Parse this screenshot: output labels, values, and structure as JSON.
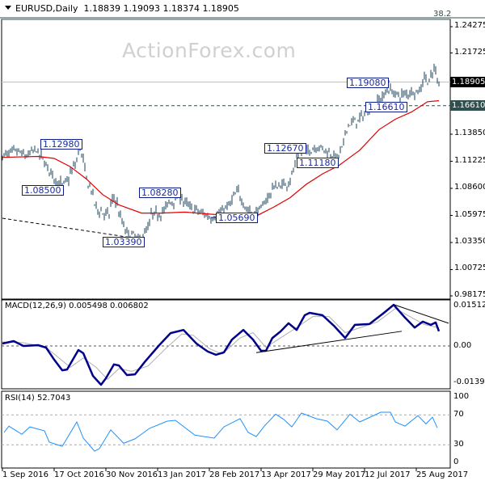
{
  "header": {
    "symbol": "EURUSD,Daily",
    "ohlc": "1.18839 1.19093 1.18374 1.18905"
  },
  "watermark": "ActionForex.com",
  "fib_label": "38.2",
  "colors": {
    "bars": "#17425a",
    "ma": "#e00000",
    "macd": "#00008b",
    "signal": "#b0b0b0",
    "rsi": "#1e90ff",
    "current_tag": "#000000",
    "level_tag": "#2f4f4f",
    "annotation": "#0a1a8a"
  },
  "chart_data": [
    {
      "type": "ohlc-bar",
      "title": "EURUSD,Daily",
      "y_ticks": [
        "1.24275",
        "1.21725",
        "1.18905",
        "1.16610",
        "1.13850",
        "1.11225",
        "1.08600",
        "1.05975",
        "1.03350",
        "1.00725",
        "0.98175"
      ],
      "ylim": [
        0.98175,
        1.24275
      ],
      "x_ticks": [
        {
          "date": "2016-09-01",
          "label": "1 Sep 2016"
        },
        {
          "date": "2016-10-17",
          "label": "17 Oct 2016"
        },
        {
          "date": "2016-11-30",
          "label": "30 Nov 2016"
        },
        {
          "date": "2017-01-13",
          "label": "13 Jan 2017"
        },
        {
          "date": "2017-02-28",
          "label": "28 Feb 2017"
        },
        {
          "date": "2017-04-13",
          "label": "13 Apr 2017"
        },
        {
          "date": "2017-05-29",
          "label": "29 May 2017"
        },
        {
          "date": "2017-07-12",
          "label": "12 Jul 2017"
        },
        {
          "date": "2017-08-25",
          "label": "25 Aug 2017"
        }
      ],
      "last_bar": {
        "open": 1.18839,
        "high": 1.19093,
        "low": 1.18374,
        "close": 1.18905
      },
      "current_price": "1.18905",
      "horizontal_level": "1.16610",
      "close_path": [
        [
          "2016-09-01",
          1.117
        ],
        [
          "2016-09-13",
          1.122
        ],
        [
          "2016-09-23",
          1.117
        ],
        [
          "2016-09-30",
          1.124
        ],
        [
          "2016-10-07",
          1.113
        ],
        [
          "2016-10-14",
          1.1
        ],
        [
          "2016-10-23",
          1.087
        ],
        [
          "2016-10-31",
          1.1
        ],
        [
          "2016-11-08",
          1.125
        ],
        [
          "2016-11-11",
          1.105
        ],
        [
          "2016-11-18",
          1.08
        ],
        [
          "2016-11-23",
          1.065
        ],
        [
          "2016-12-02",
          1.06
        ],
        [
          "2016-12-07",
          1.077
        ],
        [
          "2016-12-12",
          1.062
        ],
        [
          "2016-12-16",
          1.045
        ],
        [
          "2016-12-23",
          1.04
        ],
        [
          "2016-12-29",
          1.036
        ],
        [
          "2017-01-03",
          1.042
        ],
        [
          "2017-01-09",
          1.06
        ],
        [
          "2017-01-17",
          1.062
        ],
        [
          "2017-01-24",
          1.072
        ],
        [
          "2017-02-02",
          1.078
        ],
        [
          "2017-02-10",
          1.068
        ],
        [
          "2017-02-21",
          1.062
        ],
        [
          "2017-03-01",
          1.058
        ],
        [
          "2017-03-07",
          1.06
        ],
        [
          "2017-03-17",
          1.07
        ],
        [
          "2017-03-25",
          1.085
        ],
        [
          "2017-03-31",
          1.066
        ],
        [
          "2017-04-07",
          1.062
        ],
        [
          "2017-04-14",
          1.067
        ],
        [
          "2017-04-24",
          1.087
        ],
        [
          "2017-05-05",
          1.09
        ],
        [
          "2017-05-09",
          1.095
        ],
        [
          "2017-05-15",
          1.12
        ],
        [
          "2017-05-23",
          1.122
        ],
        [
          "2017-06-02",
          1.127
        ],
        [
          "2017-06-12",
          1.12
        ],
        [
          "2017-06-19",
          1.115
        ],
        [
          "2017-06-23",
          1.128
        ],
        [
          "2017-06-28",
          1.148
        ],
        [
          "2017-07-07",
          1.152
        ],
        [
          "2017-07-18",
          1.165
        ],
        [
          "2017-07-25",
          1.172
        ],
        [
          "2017-08-02",
          1.182
        ],
        [
          "2017-08-11",
          1.175
        ],
        [
          "2017-08-22",
          1.18
        ],
        [
          "2017-08-29",
          1.18
        ],
        [
          "2017-09-01",
          1.195
        ],
        [
          "2017-09-06",
          1.19
        ],
        [
          "2017-09-11",
          1.203
        ],
        [
          "2017-09-14",
          1.189
        ]
      ],
      "moving_average": [
        [
          "2016-09-01",
          1.116
        ],
        [
          "2016-10-03",
          1.117
        ],
        [
          "2016-10-17",
          1.115
        ],
        [
          "2016-10-31",
          1.107
        ],
        [
          "2016-11-14",
          1.095
        ],
        [
          "2016-11-28",
          1.08
        ],
        [
          "2016-12-12",
          1.07
        ],
        [
          "2016-12-30",
          1.062
        ],
        [
          "2017-01-17",
          1.062
        ],
        [
          "2017-02-07",
          1.063
        ],
        [
          "2017-02-28",
          1.061
        ],
        [
          "2017-03-14",
          1.06
        ],
        [
          "2017-03-28",
          1.062
        ],
        [
          "2017-04-11",
          1.06
        ],
        [
          "2017-04-25",
          1.068
        ],
        [
          "2017-05-09",
          1.077
        ],
        [
          "2017-05-23",
          1.09
        ],
        [
          "2017-06-06",
          1.1
        ],
        [
          "2017-06-20",
          1.108
        ],
        [
          "2017-07-07",
          1.123
        ],
        [
          "2017-07-25",
          1.143
        ],
        [
          "2017-08-08",
          1.153
        ],
        [
          "2017-08-22",
          1.16
        ],
        [
          "2017-09-05",
          1.17
        ],
        [
          "2017-09-14",
          1.171
        ]
      ],
      "annotations": [
        {
          "label": "1.12980",
          "date": "2016-11-08",
          "price": 1.1298
        },
        {
          "label": "1.08500",
          "date": "2016-10-23",
          "price": 1.085
        },
        {
          "label": "1.03390",
          "date": "2016-12-29",
          "price": 1.0339
        },
        {
          "label": "1.08280",
          "date": "2017-02-02",
          "price": 1.0828
        },
        {
          "label": "1.05690",
          "date": "2017-03-01",
          "price": 1.0569
        },
        {
          "label": "1.12670",
          "date": "2017-05-23",
          "price": 1.1267
        },
        {
          "label": "1.11180",
          "date": "2017-06-19",
          "price": 1.1118
        },
        {
          "label": "1.16610",
          "date": "2017-08-11",
          "price": 1.1661
        },
        {
          "label": "1.19080",
          "date": "2017-08-02",
          "price": 1.1908
        }
      ],
      "trendline": [
        [
          "2016-09-01",
          1.057
        ],
        [
          "2016-12-29",
          1.037
        ]
      ]
    },
    {
      "type": "line",
      "title": "MACD(12,26,9) 0.005498 0.006802",
      "y_ticks": [
        "0.01512",
        "0.00",
        "-0.013938"
      ],
      "ylim": [
        -0.0155,
        0.017
      ],
      "series": [
        {
          "name": "MACD",
          "values": [
            [
              "2016-09-01",
              0.0009
            ],
            [
              "2016-09-12",
              0.0018
            ],
            [
              "2016-09-20",
              0.0
            ],
            [
              "2016-10-03",
              0.0003
            ],
            [
              "2016-10-08",
              -0.0006
            ],
            [
              "2016-10-15",
              -0.0051
            ],
            [
              "2016-10-24",
              -0.0091
            ],
            [
              "2016-10-27",
              -0.0088
            ],
            [
              "2016-11-07",
              -0.0015
            ],
            [
              "2016-11-10",
              -0.0027
            ],
            [
              "2016-11-18",
              -0.0112
            ],
            [
              "2016-11-25",
              -0.0145
            ],
            [
              "2016-11-30",
              -0.0121
            ],
            [
              "2016-12-07",
              -0.0069
            ],
            [
              "2016-12-12",
              -0.0073
            ],
            [
              "2016-12-19",
              -0.0109
            ],
            [
              "2016-12-25",
              -0.0106
            ],
            [
              "2017-01-03",
              -0.006
            ],
            [
              "2017-01-14",
              0.0003
            ],
            [
              "2017-01-25",
              0.0048
            ],
            [
              "2017-02-04",
              0.006
            ],
            [
              "2017-02-16",
              0.0009
            ],
            [
              "2017-02-25",
              -0.0021
            ],
            [
              "2017-03-04",
              -0.0033
            ],
            [
              "2017-03-11",
              -0.0024
            ],
            [
              "2017-03-19",
              0.0024
            ],
            [
              "2017-03-29",
              0.006
            ],
            [
              "2017-04-06",
              0.0024
            ],
            [
              "2017-04-13",
              -0.0018
            ],
            [
              "2017-04-18",
              -0.0018
            ],
            [
              "2017-04-24",
              0.003
            ],
            [
              "2017-04-29",
              0.0054
            ],
            [
              "2017-05-08",
              0.0085
            ],
            [
              "2017-05-14",
              0.006
            ],
            [
              "2017-05-20",
              0.0115
            ],
            [
              "2017-05-25",
              0.0124
            ],
            [
              "2017-06-06",
              0.0115
            ],
            [
              "2017-06-15",
              0.0076
            ],
            [
              "2017-06-25",
              0.003
            ],
            [
              "2017-07-04",
              0.0079
            ],
            [
              "2017-07-17",
              0.0082
            ],
            [
              "2017-07-28",
              0.0124
            ],
            [
              "2017-08-06",
              0.0154
            ],
            [
              "2017-08-16",
              0.0106
            ],
            [
              "2017-08-24",
              0.0069
            ],
            [
              "2017-08-31",
              0.0091
            ],
            [
              "2017-09-07",
              0.0079
            ],
            [
              "2017-09-12",
              0.0088
            ],
            [
              "2017-09-14",
              0.0055
            ]
          ]
        },
        {
          "name": "Signal",
          "values": [
            [
              "2016-09-01",
              0.0015
            ],
            [
              "2016-09-20",
              0.0012
            ],
            [
              "2016-10-08",
              -0.0005
            ],
            [
              "2016-10-20",
              -0.0045
            ],
            [
              "2016-10-30",
              -0.008
            ],
            [
              "2016-11-10",
              -0.0045
            ],
            [
              "2016-11-22",
              -0.008
            ],
            [
              "2016-12-01",
              -0.0125
            ],
            [
              "2016-12-12",
              -0.0085
            ],
            [
              "2016-12-22",
              -0.0095
            ],
            [
              "2017-01-05",
              -0.0075
            ],
            [
              "2017-01-20",
              -0.001
            ],
            [
              "2017-02-03",
              0.0045
            ],
            [
              "2017-02-14",
              0.004
            ],
            [
              "2017-02-28",
              -0.001
            ],
            [
              "2017-03-10",
              -0.003
            ],
            [
              "2017-03-25",
              0.003
            ],
            [
              "2017-04-06",
              0.005
            ],
            [
              "2017-04-18",
              -0.0005
            ],
            [
              "2017-04-30",
              0.003
            ],
            [
              "2017-05-12",
              0.0065
            ],
            [
              "2017-05-28",
              0.011
            ],
            [
              "2017-06-10",
              0.011
            ],
            [
              "2017-06-25",
              0.005
            ],
            [
              "2017-07-08",
              0.007
            ],
            [
              "2017-07-22",
              0.009
            ],
            [
              "2017-08-08",
              0.014
            ],
            [
              "2017-08-20",
              0.011
            ],
            [
              "2017-09-01",
              0.008
            ],
            [
              "2017-09-14",
              0.0068
            ]
          ]
        }
      ],
      "trendlines": [
        [
          [
            "2017-04-10",
            -0.0025
          ],
          [
            "2017-08-12",
            0.0055
          ]
        ],
        [
          [
            "2017-08-06",
            0.0155
          ],
          [
            "2017-09-22",
            0.0085
          ]
        ]
      ]
    },
    {
      "type": "line",
      "title": "RSI(14) 52.7043",
      "y_ticks": [
        "100",
        "70",
        "30",
        "0"
      ],
      "levels": [
        70,
        30
      ],
      "ylim": [
        0,
        100
      ],
      "series": [
        {
          "name": "RSI",
          "values": [
            [
              "2016-09-02",
              46.5
            ],
            [
              "2016-09-07",
              55
            ],
            [
              "2016-09-18",
              44
            ],
            [
              "2016-09-24",
              54
            ],
            [
              "2016-10-07",
              48.7
            ],
            [
              "2016-10-12",
              33.6
            ],
            [
              "2016-10-23",
              28
            ],
            [
              "2016-11-04",
              60.6
            ],
            [
              "2016-11-10",
              39
            ],
            [
              "2016-11-20",
              21.6
            ],
            [
              "2016-11-24",
              25
            ],
            [
              "2016-12-05",
              50
            ],
            [
              "2016-12-15",
              32
            ],
            [
              "2016-12-26",
              38
            ],
            [
              "2017-01-06",
              52
            ],
            [
              "2017-01-22",
              61.7
            ],
            [
              "2017-01-29",
              62.8
            ],
            [
              "2017-02-15",
              43
            ],
            [
              "2017-03-03",
              39
            ],
            [
              "2017-03-11",
              54
            ],
            [
              "2017-03-26",
              65
            ],
            [
              "2017-04-01",
              46.5
            ],
            [
              "2017-04-08",
              41
            ],
            [
              "2017-04-17",
              55
            ],
            [
              "2017-04-26",
              71
            ],
            [
              "2017-05-03",
              64
            ],
            [
              "2017-05-10",
              54
            ],
            [
              "2017-05-18",
              72.5
            ],
            [
              "2017-05-31",
              65
            ],
            [
              "2017-06-09",
              61.7
            ],
            [
              "2017-06-19",
              50
            ],
            [
              "2017-06-29",
              71
            ],
            [
              "2017-07-07",
              60.6
            ],
            [
              "2017-07-26",
              73.6
            ],
            [
              "2017-08-03",
              73.6
            ],
            [
              "2017-08-08",
              60.6
            ],
            [
              "2017-08-16",
              55
            ],
            [
              "2017-08-27",
              69
            ],
            [
              "2017-09-03",
              58
            ],
            [
              "2017-09-08",
              67
            ],
            [
              "2017-09-13",
              52.7
            ]
          ]
        }
      ]
    }
  ]
}
